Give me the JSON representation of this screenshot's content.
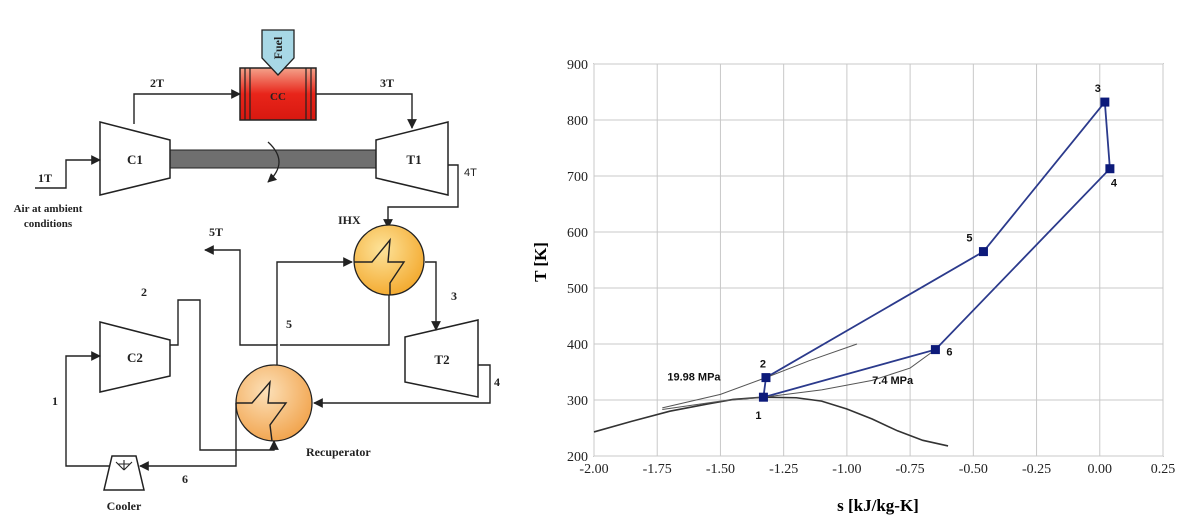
{
  "schematic": {
    "fuel_label": "Fuel",
    "cc_label": "CC",
    "c1_label": "C1",
    "t1_label": "T1",
    "c2_label": "C2",
    "t2_label": "T2",
    "ihx_label": "IHX",
    "recuperator_label": "Recuperator",
    "cooler_label": "Cooler",
    "air_inlet_line1": "Air at ambient",
    "air_inlet_line2": "conditions",
    "state_labels": {
      "s1T": "1T",
      "s2T": "2T",
      "s3T": "3T",
      "s4T": "4T",
      "s5T": "5T",
      "s1": "1",
      "s2": "2",
      "s3": "3",
      "s4": "4",
      "s5": "5",
      "s6": "6"
    },
    "colors": {
      "cc_fill": "#e8251a",
      "hx_fill": "#f5b23c",
      "fuel_fill": "#a8d8e6",
      "shaft_fill": "#707070"
    }
  },
  "chart_data": {
    "type": "line",
    "title": "",
    "xlabel": "s [kJ/kg-K]",
    "ylabel": "T [K]",
    "xlim": [
      -2.0,
      0.25
    ],
    "ylim": [
      200,
      900
    ],
    "xticks": [
      "-2.00",
      "-1.75",
      "-1.50",
      "-1.25",
      "-1.00",
      "-0.75",
      "-0.50",
      "-0.25",
      "0.00",
      "0.25"
    ],
    "yticks": [
      "200",
      "300",
      "400",
      "500",
      "600",
      "700",
      "800",
      "900"
    ],
    "grid": true,
    "series": [
      {
        "kind": "cycle",
        "color": "#2b3a8c",
        "points": [
          {
            "label": "1",
            "s": -1.33,
            "T": 305
          },
          {
            "label": "2",
            "s": -1.32,
            "T": 340
          },
          {
            "label": "5",
            "s": -0.46,
            "T": 565
          },
          {
            "label": "3",
            "s": 0.02,
            "T": 832
          },
          {
            "label": "4",
            "s": 0.04,
            "T": 713
          },
          {
            "label": "6",
            "s": -0.65,
            "T": 390
          }
        ]
      },
      {
        "kind": "saturation-dome",
        "color": "#333333",
        "points": [
          [
            -2.0,
            243
          ],
          [
            -1.85,
            262
          ],
          [
            -1.7,
            280
          ],
          [
            -1.55,
            293
          ],
          [
            -1.45,
            301
          ],
          [
            -1.33,
            305
          ],
          [
            -1.2,
            304
          ],
          [
            -1.1,
            298
          ],
          [
            -1.0,
            284
          ],
          [
            -0.9,
            266
          ],
          [
            -0.8,
            245
          ],
          [
            -0.7,
            228
          ],
          [
            -0.6,
            218
          ]
        ]
      },
      {
        "kind": "isobar",
        "label": "19.98 MPa",
        "color": "#555555",
        "points": [
          [
            -1.73,
            286
          ],
          [
            -1.5,
            310
          ],
          [
            -1.32,
            340
          ],
          [
            -1.15,
            370
          ],
          [
            -0.96,
            400
          ]
        ]
      },
      {
        "kind": "isobar",
        "label": "7.4 MPa",
        "color": "#555555",
        "points": [
          [
            -1.73,
            283
          ],
          [
            -1.5,
            298
          ],
          [
            -1.33,
            305
          ],
          [
            -1.1,
            318
          ],
          [
            -0.9,
            335
          ],
          [
            -0.75,
            357
          ],
          [
            -0.65,
            390
          ]
        ]
      }
    ]
  }
}
